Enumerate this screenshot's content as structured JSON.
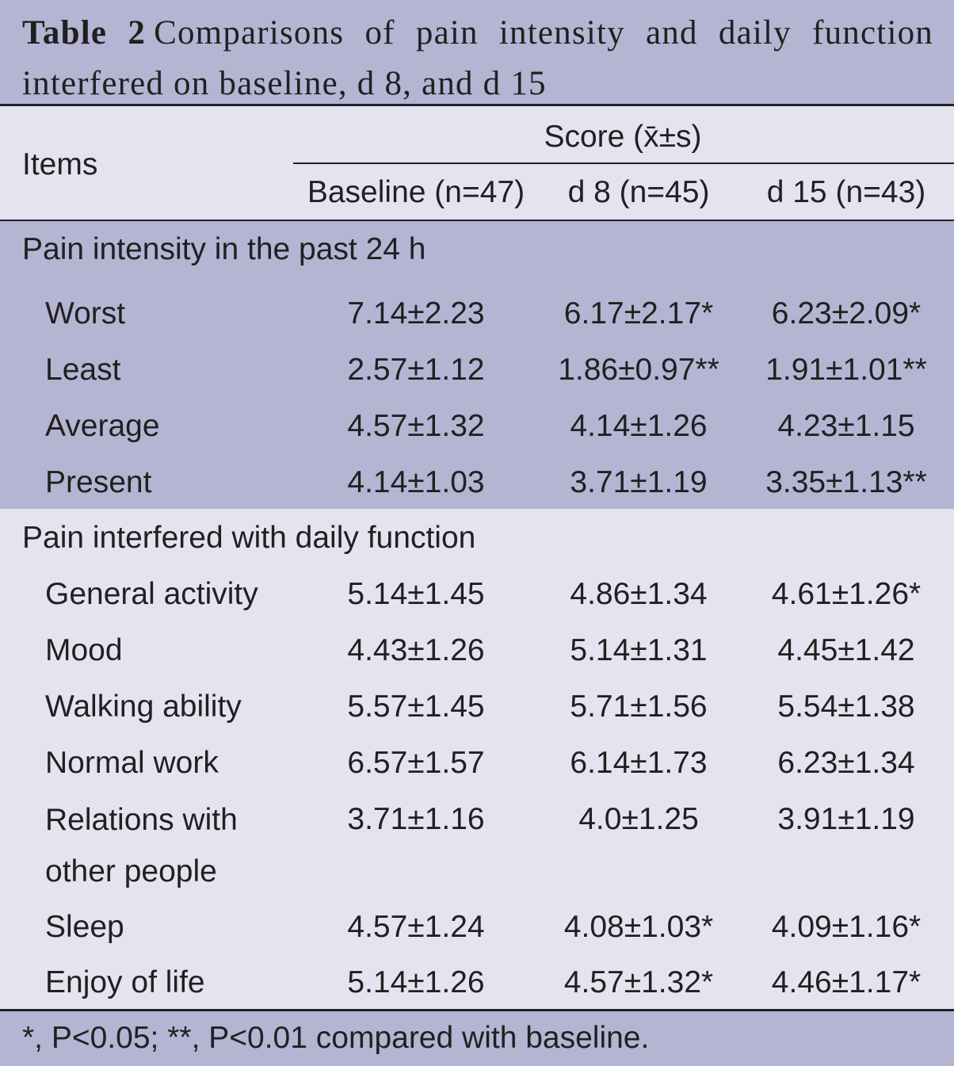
{
  "header": {
    "label": "Table 2",
    "title": "Comparisons of pain intensity and daily function interfered on baseline, d 8, and d 15"
  },
  "table": {
    "items_header": "Items",
    "group_header": "Score (x̄±s)",
    "columns": [
      "Baseline (n=47)",
      "d 8 (n=45)",
      "d 15 (n=43)"
    ],
    "sections": [
      {
        "name": "Pain intensity in the past 24 h",
        "rows": [
          [
            "Worst",
            "7.14±2.23",
            "6.17±2.17*",
            "6.23±2.09*"
          ],
          [
            "Least",
            "2.57±1.12",
            "1.86±0.97**",
            "1.91±1.01**"
          ],
          [
            "Average",
            "4.57±1.32",
            "4.14±1.26",
            "4.23±1.15"
          ],
          [
            "Present",
            "4.14±1.03",
            "3.71±1.19",
            "3.35±1.13**"
          ]
        ]
      },
      {
        "name": "Pain interfered with daily function",
        "rows": [
          [
            "General activity",
            "5.14±1.45",
            "4.86±1.34",
            "4.61±1.26*"
          ],
          [
            "Mood",
            "4.43±1.26",
            "5.14±1.31",
            "4.45±1.42"
          ],
          [
            "Walking ability",
            "5.57±1.45",
            "5.71±1.56",
            "5.54±1.38"
          ],
          [
            "Normal work",
            "6.57±1.57",
            "6.14±1.73",
            "6.23±1.34"
          ],
          [
            "Relations with other people",
            "3.71±1.16",
            "4.0±1.25",
            "3.91±1.19"
          ],
          [
            "Sleep",
            "4.57±1.24",
            "4.08±1.03*",
            "4.09±1.16*"
          ],
          [
            "Enjoy of life",
            "5.14±1.26",
            "4.57±1.32*",
            "4.46±1.17*"
          ]
        ]
      }
    ]
  },
  "footnote": "*, P<0.05; **, P<0.01 compared with baseline."
}
